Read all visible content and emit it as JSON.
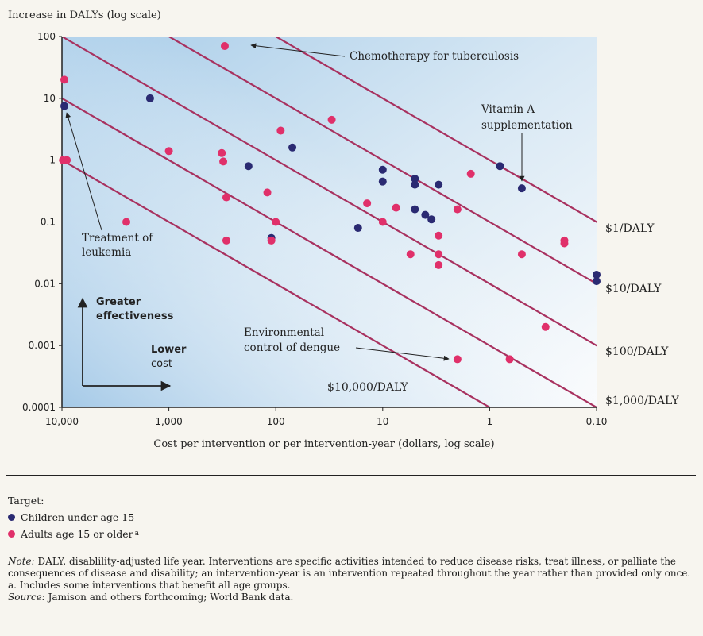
{
  "chart_data": {
    "type": "scatter",
    "title": "",
    "ylabel": "Increase in DALYs (log scale)",
    "xlabel": "Cost per intervention or per intervention-year (dollars, log scale)",
    "x_scale": "log",
    "x_reversed": true,
    "y_scale": "log",
    "xlim": [
      10000,
      0.1
    ],
    "ylim": [
      0.0001,
      100
    ],
    "x_ticks": [
      10000,
      1000,
      100,
      10,
      1,
      0.1
    ],
    "x_tick_labels": [
      "10,000",
      "1,000",
      "100",
      "10",
      "1",
      "0.10"
    ],
    "y_ticks": [
      100,
      10,
      1,
      0.1,
      0.01,
      0.001,
      0.0001
    ],
    "y_tick_labels": [
      "100",
      "10",
      "1",
      "0.1",
      "0.01",
      "0.001",
      "0.0001"
    ],
    "isocost_lines": [
      {
        "label": "$1/DALY",
        "cost_per_daly": 1
      },
      {
        "label": "$10/DALY",
        "cost_per_daly": 10
      },
      {
        "label": "$100/DALY",
        "cost_per_daly": 100
      },
      {
        "label": "$1,000/DALY",
        "cost_per_daly": 1000
      },
      {
        "label": "$10,000/DALY",
        "cost_per_daly": 10000
      }
    ],
    "series": [
      {
        "name": "Children under age 15",
        "color": "#2a2a72",
        "points": [
          {
            "x": 9500,
            "y": 7.5
          },
          {
            "x": 1500,
            "y": 10
          },
          {
            "x": 180,
            "y": 0.8
          },
          {
            "x": 110,
            "y": 0.055
          },
          {
            "x": 70,
            "y": 1.6
          },
          {
            "x": 17,
            "y": 0.08
          },
          {
            "x": 10,
            "y": 0.7
          },
          {
            "x": 10,
            "y": 0.45
          },
          {
            "x": 5,
            "y": 0.5
          },
          {
            "x": 5,
            "y": 0.4
          },
          {
            "x": 5,
            "y": 0.16
          },
          {
            "x": 4,
            "y": 0.13
          },
          {
            "x": 3.5,
            "y": 0.11
          },
          {
            "x": 3,
            "y": 0.4
          },
          {
            "x": 0.8,
            "y": 0.8
          },
          {
            "x": 0.5,
            "y": 0.35
          },
          {
            "x": 0.1,
            "y": 0.014
          },
          {
            "x": 0.1,
            "y": 0.011
          }
        ]
      },
      {
        "name": "Adults age 15 or older",
        "name_footnote": "a",
        "color": "#e0306a",
        "points": [
          {
            "x": 9500,
            "y": 20
          },
          {
            "x": 9800,
            "y": 1
          },
          {
            "x": 9000,
            "y": 1
          },
          {
            "x": 2500,
            "y": 0.1
          },
          {
            "x": 1000,
            "y": 1.4
          },
          {
            "x": 300,
            "y": 70
          },
          {
            "x": 320,
            "y": 1.3
          },
          {
            "x": 310,
            "y": 0.95
          },
          {
            "x": 290,
            "y": 0.25
          },
          {
            "x": 290,
            "y": 0.05
          },
          {
            "x": 120,
            "y": 0.3
          },
          {
            "x": 110,
            "y": 0.05
          },
          {
            "x": 100,
            "y": 0.1
          },
          {
            "x": 90,
            "y": 3
          },
          {
            "x": 30,
            "y": 4.5
          },
          {
            "x": 14,
            "y": 0.2
          },
          {
            "x": 10,
            "y": 0.1
          },
          {
            "x": 7.5,
            "y": 0.17
          },
          {
            "x": 5.5,
            "y": 0.03
          },
          {
            "x": 3,
            "y": 0.06
          },
          {
            "x": 3,
            "y": 0.03
          },
          {
            "x": 3,
            "y": 0.02
          },
          {
            "x": 2,
            "y": 0.0006
          },
          {
            "x": 2,
            "y": 0.16
          },
          {
            "x": 1.5,
            "y": 0.6
          },
          {
            "x": 0.5,
            "y": 0.03
          },
          {
            "x": 0.65,
            "y": 0.0006
          },
          {
            "x": 0.3,
            "y": 0.002
          },
          {
            "x": 0.2,
            "y": 0.05
          },
          {
            "x": 0.2,
            "y": 0.045
          }
        ]
      }
    ],
    "annotations": [
      {
        "id": "chemo",
        "text": "Chemotherapy for tuberculosis",
        "target": {
          "x": 300,
          "y": 70
        }
      },
      {
        "id": "vitamin",
        "text_lines": [
          "Vitamin A",
          "supplementation"
        ],
        "target": {
          "x": 0.8,
          "y": 0.8
        }
      },
      {
        "id": "leukemia",
        "text_lines": [
          "Treatment of",
          "leukemia"
        ],
        "target": {
          "x": 9500,
          "y": 7.5
        }
      },
      {
        "id": "dengue",
        "text_lines": [
          "Environmental",
          "control of dengue"
        ],
        "target": {
          "x": 2,
          "y": 0.0006
        }
      }
    ],
    "callouts": {
      "effectiveness_lines": [
        "Greater",
        "effectiveness"
      ],
      "cost_lines": [
        "Lower",
        "cost"
      ]
    }
  },
  "legend": {
    "title": "Target:",
    "children_label": "Children under age 15",
    "adults_label": "Adults age 15 or older",
    "adults_footnote": "a"
  },
  "notes": {
    "note_label": "Note:",
    "note_text": "DALY, disablility-adjusted life year. Interventions are specific activities intended to reduce disease risks, treat illness, or palliate the consequences of disease and disability; an intervention-year is an intervention repeated throughout the year rather than provided only once.",
    "footnote_a": "a. Includes some interventions that benefit all age groups.",
    "source_label": "Source:",
    "source_text": "Jamison and others forthcoming; World Bank data."
  }
}
